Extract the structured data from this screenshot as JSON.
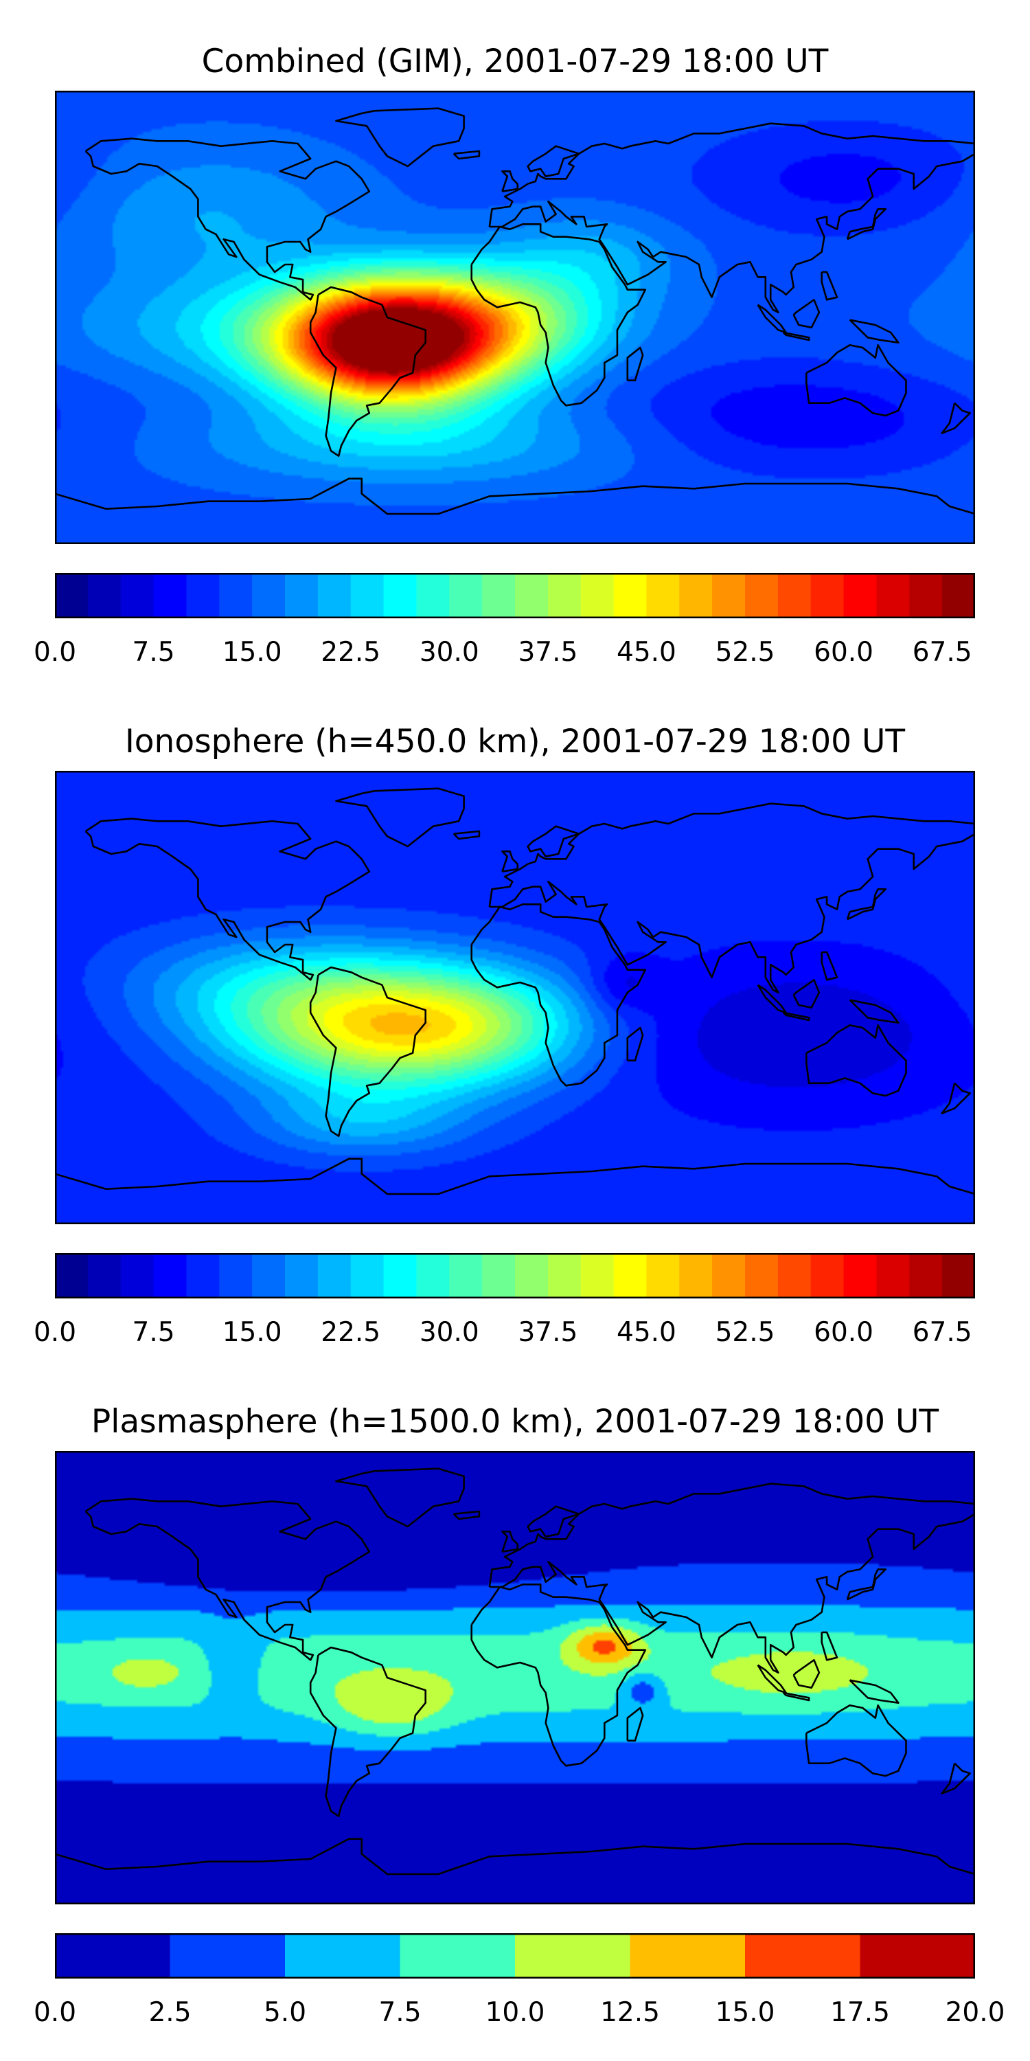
{
  "panels": [
    {
      "title": "Combined (GIM), 2001-07-29 18:00 UT",
      "colormap": "jet",
      "levels": [
        0,
        2.5,
        5,
        7.5,
        10,
        12.5,
        15,
        17.5,
        20,
        22.5,
        25,
        27.5,
        30,
        32.5,
        35,
        37.5,
        40,
        42.5,
        45,
        47.5,
        50,
        52.5,
        55,
        57.5,
        60,
        62.5,
        65,
        67.5,
        70
      ],
      "tick_labels": [
        "0.0",
        "7.5",
        "15.0",
        "22.5",
        "30.0",
        "37.5",
        "45.0",
        "52.5",
        "60.0",
        "67.5"
      ],
      "background_value": 14,
      "blobs": [
        {
          "lon": -48,
          "lat": -12,
          "value": 56,
          "sx": 30,
          "sy": 16
        },
        {
          "lon": -25,
          "lat": 5,
          "value": 12,
          "sx": 40,
          "sy": 14
        },
        {
          "lon": -80,
          "lat": -5,
          "value": 10,
          "sx": 60,
          "sy": 15
        },
        {
          "lon": 5,
          "lat": -5,
          "value": 8,
          "sx": 25,
          "sy": 15
        },
        {
          "lon": -40,
          "lat": -50,
          "value": 8,
          "sx": 60,
          "sy": 12
        },
        {
          "lon": -120,
          "lat": 40,
          "value": 6,
          "sx": 40,
          "sy": 20
        },
        {
          "lon": 30,
          "lat": 25,
          "value": 6,
          "sx": 25,
          "sy": 12
        },
        {
          "lon": 110,
          "lat": -40,
          "value": -6,
          "sx": 50,
          "sy": 15
        },
        {
          "lon": 130,
          "lat": 55,
          "value": -5,
          "sx": 40,
          "sy": 15
        }
      ]
    },
    {
      "title": "Ionosphere  (h=450.0 km), 2001-07-29 18:00 UT",
      "colormap": "jet",
      "levels": [
        0,
        2.5,
        5,
        7.5,
        10,
        12.5,
        15,
        17.5,
        20,
        22.5,
        25,
        27.5,
        30,
        32.5,
        35,
        37.5,
        40,
        42.5,
        45,
        47.5,
        50,
        52.5,
        55,
        57.5,
        60,
        62.5,
        65,
        67.5,
        70
      ],
      "tick_labels": [
        "0.0",
        "7.5",
        "15.0",
        "22.5",
        "30.0",
        "37.5",
        "45.0",
        "52.5",
        "60.0",
        "67.5"
      ],
      "background_value": 11,
      "blobs": [
        {
          "lon": -50,
          "lat": -12,
          "value": 32,
          "sx": 42,
          "sy": 18
        },
        {
          "lon": -10,
          "lat": -10,
          "value": 8,
          "sx": 30,
          "sy": 15
        },
        {
          "lon": -100,
          "lat": 5,
          "value": 8,
          "sx": 40,
          "sy": 15
        },
        {
          "lon": -60,
          "lat": -50,
          "value": 8,
          "sx": 30,
          "sy": 10
        },
        {
          "lon": 110,
          "lat": -15,
          "value": -6,
          "sx": 45,
          "sy": 20
        },
        {
          "lon": 42,
          "lat": 5,
          "value": -5,
          "sx": 10,
          "sy": 8
        }
      ]
    },
    {
      "title": "Plasmasphere (h=1500.0 km), 2001-07-29 18:00 UT",
      "colormap": "jet",
      "levels": [
        0,
        2.5,
        5,
        7.5,
        10,
        12.5,
        15,
        17.5,
        20
      ],
      "tick_labels": [
        "0.0",
        "2.5",
        "5.0",
        "7.5",
        "10.0",
        "12.5",
        "15.0",
        "17.5",
        "20.0"
      ],
      "background_value": 1.5,
      "blobs": [
        {
          "lon": 0,
          "lat": 2,
          "value": 7.6,
          "sx": 400,
          "sy": 22
        },
        {
          "lon": 35,
          "lat": 13,
          "value": 7.5,
          "sx": 10,
          "sy": 6
        },
        {
          "lon": -48,
          "lat": -12,
          "value": 4.5,
          "sx": 17,
          "sy": 9
        },
        {
          "lon": 110,
          "lat": 2,
          "value": 2.5,
          "sx": 25,
          "sy": 9
        },
        {
          "lon": -145,
          "lat": 2,
          "value": 2.5,
          "sx": 12,
          "sy": 6
        },
        {
          "lon": 50,
          "lat": -5,
          "value": -5,
          "sx": 6,
          "sy": 5
        },
        {
          "lon": -110,
          "lat": 5,
          "value": -3,
          "sx": 8,
          "sy": 12
        },
        {
          "lon": -70,
          "lat": 40,
          "value": -2,
          "sx": 60,
          "sy": 8
        }
      ]
    }
  ]
}
